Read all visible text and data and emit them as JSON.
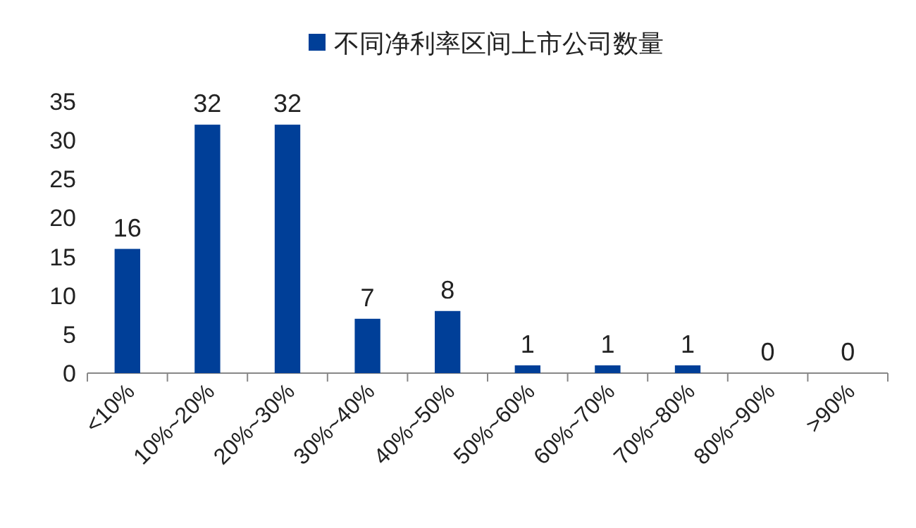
{
  "chart_data": {
    "type": "bar",
    "categories": [
      "<10%",
      "10%~20%",
      "20%~30%",
      "30%~40%",
      "40%~50%",
      "50%~60%",
      "60%~70%",
      "70%~80%",
      "80%~90%",
      ">90%"
    ],
    "series": [
      {
        "name": "不同净利率区间上市公司数量",
        "color": "#003f98",
        "values": [
          16,
          32,
          32,
          7,
          8,
          1,
          1,
          1,
          0,
          0
        ]
      }
    ],
    "ylim": [
      0,
      35
    ],
    "yticks": [
      0,
      5,
      10,
      15,
      20,
      25,
      30,
      35
    ],
    "data_labels": true,
    "legend": "top"
  }
}
